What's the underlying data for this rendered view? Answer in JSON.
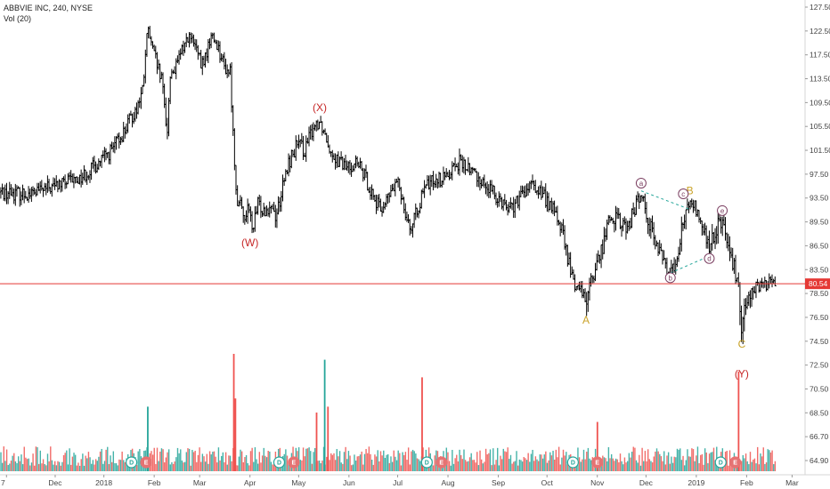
{
  "header": {
    "symbol_line": "ABBVIE INC, 240, NYSE",
    "volume_line": "Vol (20)"
  },
  "chart_data": {
    "type": "ohlc",
    "symbol": "ABBVIE INC",
    "interval": "240",
    "exchange": "NYSE",
    "volume_indicator": "Vol (20)",
    "y_ticks": [
      "127.50",
      "122.50",
      "117.50",
      "113.50",
      "109.50",
      "105.50",
      "101.50",
      "97.50",
      "93.50",
      "89.50",
      "86.50",
      "83.50",
      "80.54",
      "78.50",
      "76.50",
      "74.50",
      "72.50",
      "70.50",
      "68.50",
      "66.70",
      "64.90"
    ],
    "y_tick_values": [
      127.5,
      122.5,
      117.5,
      113.5,
      109.5,
      105.5,
      101.5,
      97.5,
      93.5,
      89.5,
      86.5,
      83.5,
      80.54,
      78.5,
      76.5,
      74.5,
      72.5,
      70.5,
      68.5,
      66.7,
      64.9
    ],
    "ylim": [
      63.8,
      128.6
    ],
    "price_axis_side": "right",
    "last_price": 80.54,
    "last_price_label": "80.54",
    "last_price_color": "#e53935",
    "x_ticks": [
      "7",
      "Dec",
      "2018",
      "Feb",
      "Mar",
      "Apr",
      "May",
      "Jun",
      "Jul",
      "Aug",
      "Sep",
      "Oct",
      "Nov",
      "Dec",
      "2019",
      "Feb",
      "Mar"
    ],
    "x_tick_days": [
      -60,
      -30,
      0,
      31,
      59,
      90,
      120,
      151,
      181,
      212,
      243,
      273,
      304,
      334,
      365,
      396,
      424
    ],
    "xlim_days": [
      -64,
      432
    ],
    "x_unit": "calendar days from 2018-01-01",
    "price_path": [
      [
        -64,
        94.5
      ],
      [
        -45,
        94.2
      ],
      [
        -30,
        95.5
      ],
      [
        -15,
        96.8
      ],
      [
        -5,
        99.0
      ],
      [
        5,
        101.5
      ],
      [
        12,
        104.5
      ],
      [
        20,
        108.5
      ],
      [
        24,
        111.5
      ],
      [
        27,
        123.0
      ],
      [
        30,
        118.5
      ],
      [
        33,
        115.5
      ],
      [
        36,
        112.5
      ],
      [
        39,
        104.5
      ],
      [
        41,
        114.5
      ],
      [
        45,
        115.5
      ],
      [
        48,
        118.5
      ],
      [
        52,
        121.5
      ],
      [
        56,
        119.5
      ],
      [
        60,
        115.5
      ],
      [
        63,
        117.5
      ],
      [
        66,
        121.5
      ],
      [
        70,
        119.5
      ],
      [
        74,
        115.5
      ],
      [
        78,
        114.5
      ],
      [
        80,
        101.5
      ],
      [
        82,
        93.5
      ],
      [
        84,
        92.0
      ],
      [
        86,
        90.5
      ],
      [
        89,
        91.5
      ],
      [
        92,
        88.5
      ],
      [
        95,
        92.5
      ],
      [
        99,
        91.5
      ],
      [
        103,
        92.5
      ],
      [
        106,
        90.5
      ],
      [
        110,
        95.0
      ],
      [
        114,
        99.5
      ],
      [
        119,
        102.5
      ],
      [
        124,
        101.5
      ],
      [
        129,
        105.5
      ],
      [
        133,
        106.5
      ],
      [
        136,
        104.5
      ],
      [
        140,
        101.5
      ],
      [
        145,
        99.5
      ],
      [
        150,
        98.5
      ],
      [
        155,
        99.5
      ],
      [
        160,
        97.5
      ],
      [
        165,
        94.5
      ],
      [
        170,
        91.5
      ],
      [
        173,
        92.5
      ],
      [
        177,
        94.5
      ],
      [
        181,
        96.0
      ],
      [
        184,
        93.5
      ],
      [
        187,
        90.0
      ],
      [
        190,
        88.5
      ],
      [
        194,
        92.5
      ],
      [
        199,
        95.5
      ],
      [
        204,
        97.0
      ],
      [
        209,
        96.5
      ],
      [
        214,
        98.5
      ],
      [
        219,
        99.5
      ],
      [
        224,
        98.5
      ],
      [
        229,
        97.5
      ],
      [
        234,
        96.0
      ],
      [
        239,
        94.5
      ],
      [
        244,
        93.5
      ],
      [
        249,
        92.0
      ],
      [
        254,
        92.5
      ],
      [
        259,
        94.5
      ],
      [
        264,
        95.5
      ],
      [
        269,
        94.5
      ],
      [
        273,
        93.0
      ],
      [
        278,
        91.0
      ],
      [
        282,
        88.5
      ],
      [
        286,
        84.5
      ],
      [
        290,
        80.5
      ],
      [
        294,
        79.5
      ],
      [
        297,
        78.0
      ],
      [
        300,
        81.0
      ],
      [
        303,
        83.5
      ],
      [
        307,
        86.5
      ],
      [
        311,
        89.5
      ],
      [
        314,
        90.5
      ],
      [
        318,
        89.5
      ],
      [
        322,
        88.5
      ],
      [
        327,
        91.5
      ],
      [
        331,
        94.5
      ],
      [
        334,
        91.5
      ],
      [
        337,
        88.5
      ],
      [
        341,
        86.5
      ],
      [
        345,
        84.5
      ],
      [
        349,
        82.8
      ],
      [
        353,
        85.5
      ],
      [
        357,
        89.5
      ],
      [
        361,
        93.0
      ],
      [
        365,
        91.5
      ],
      [
        369,
        88.5
      ],
      [
        373,
        86.0
      ],
      [
        377,
        88.5
      ],
      [
        381,
        90.0
      ],
      [
        385,
        85.0
      ],
      [
        388,
        84.0
      ],
      [
        391,
        79.5
      ],
      [
        393,
        76.0
      ],
      [
        396,
        78.5
      ],
      [
        400,
        79.5
      ],
      [
        404,
        80.0
      ],
      [
        408,
        80.5
      ],
      [
        412,
        81.0
      ],
      [
        414,
        80.54
      ]
    ],
    "volume": {
      "baseline_label": "64.90",
      "up_color": "#26a69a",
      "down_color": "#ef5350",
      "spikes": [
        {
          "day": 27,
          "value_scale": 0.55,
          "color": "#26a69a"
        },
        {
          "day": 80,
          "value_scale": 1.0,
          "color": "#ef5350"
        },
        {
          "day": 81,
          "value_scale": 0.62,
          "color": "#ef5350"
        },
        {
          "day": 131,
          "value_scale": 0.5,
          "color": "#ef5350"
        },
        {
          "day": 136,
          "value_scale": 0.95,
          "color": "#26a69a"
        },
        {
          "day": 138,
          "value_scale": 0.55,
          "color": "#ef5350"
        },
        {
          "day": 196,
          "value_scale": 0.8,
          "color": "#ef5350"
        },
        {
          "day": 304,
          "value_scale": 0.42,
          "color": "#ef5350"
        },
        {
          "day": 391,
          "value_scale": 0.85,
          "color": "#ef5350"
        }
      ]
    },
    "events": [
      {
        "label": "D",
        "day": 17,
        "kind": "dividend"
      },
      {
        "label": "E",
        "day": 26,
        "kind": "earnings"
      },
      {
        "label": "D",
        "day": 108,
        "kind": "dividend"
      },
      {
        "label": "E",
        "day": 117,
        "kind": "earnings"
      },
      {
        "label": "D",
        "day": 199,
        "kind": "dividend"
      },
      {
        "label": "E",
        "day": 208,
        "kind": "earnings"
      },
      {
        "label": "D",
        "day": 289,
        "kind": "dividend"
      },
      {
        "label": "E",
        "day": 304,
        "kind": "earnings"
      },
      {
        "label": "D",
        "day": 380,
        "kind": "dividend"
      },
      {
        "label": "E",
        "day": 389,
        "kind": "earnings"
      }
    ],
    "wave_labels": [
      {
        "text": "(W)",
        "day": 90,
        "price": 88.0,
        "position": "below",
        "color": "#c62828"
      },
      {
        "text": "(X)",
        "day": 133,
        "price": 107.5,
        "position": "above",
        "color": "#c62828"
      },
      {
        "text": "A",
        "day": 297,
        "price": 77.0,
        "position": "below",
        "color": "#c9a227"
      },
      {
        "text": "B",
        "day": 361,
        "price": 93.5,
        "position": "above",
        "color": "#c9a227"
      },
      {
        "text": "C",
        "day": 393,
        "price": 75.0,
        "position": "below",
        "color": "#c9a227"
      },
      {
        "text": "(Y)",
        "day": 393,
        "price": 72.5,
        "position": "below",
        "color": "#c62828"
      }
    ],
    "sub_wave_labels": [
      {
        "text": "a",
        "day": 331,
        "price": 96.0
      },
      {
        "text": "b",
        "day": 349,
        "price": 81.8
      },
      {
        "text": "c",
        "day": 357,
        "price": 94.2
      },
      {
        "text": "d",
        "day": 373,
        "price": 84.9
      },
      {
        "text": "e",
        "day": 381,
        "price": 91.4
      }
    ],
    "triangle_lines": [
      {
        "from": [
          331,
          94.7
        ],
        "to": [
          361,
          91.6
        ]
      },
      {
        "from": [
          349,
          82.8
        ],
        "to": [
          373,
          85.2
        ]
      }
    ]
  }
}
